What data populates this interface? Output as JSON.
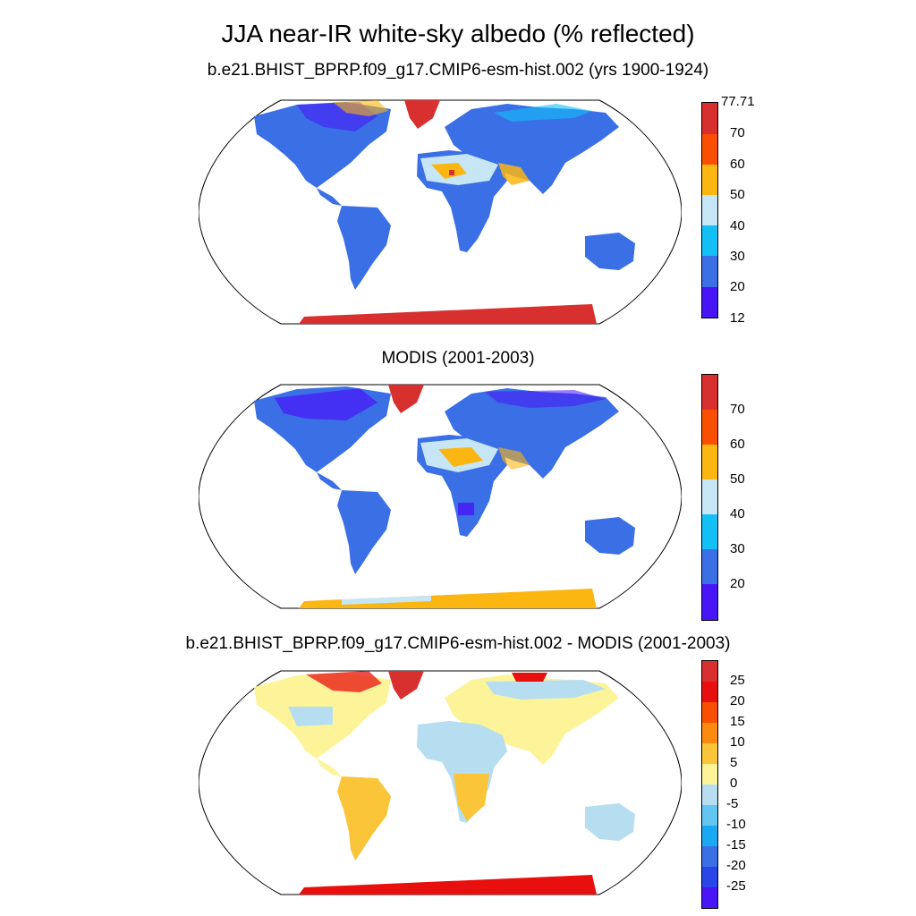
{
  "page": {
    "title": "JJA near-IR white-sky albedo (% reflected)"
  },
  "panels": [
    {
      "subtitle": "b.e21.BHIST_BPRP.f09_g17.CMIP6-esm-hist.002 (yrs 1900-1924)",
      "colorbar": {
        "labels": [
          "77.71",
          "70",
          "60",
          "50",
          "40",
          "30",
          "20",
          "12"
        ],
        "colors": [
          "#d7302f",
          "#fa4f00",
          "#fbb612",
          "#c6e6f6",
          "#12c0f6",
          "#3a6fe6",
          "#4815f6"
        ]
      }
    },
    {
      "subtitle": "MODIS (2001-2003)",
      "colorbar": {
        "labels": [
          "70",
          "60",
          "50",
          "40",
          "30",
          "20"
        ],
        "colors": [
          "#d7302f",
          "#fa4f00",
          "#fbb612",
          "#c6e6f6",
          "#12c0f6",
          "#3a6fe6",
          "#4815f6"
        ]
      }
    },
    {
      "subtitle": "b.e21.BHIST_BPRP.f09_g17.CMIP6-esm-hist.002 - MODIS (2001-2003)",
      "colorbar": {
        "labels": [
          "25",
          "20",
          "15",
          "10",
          "5",
          "0",
          "-5",
          "-10",
          "-15",
          "-20",
          "-25"
        ],
        "colors": [
          "#d7302f",
          "#e8100e",
          "#fa4f00",
          "#fb8a10",
          "#fbc53a",
          "#fdf49a",
          "#b6def0",
          "#62c6f0",
          "#1ba8f2",
          "#3a6fe6",
          "#2946e6",
          "#4815f6"
        ]
      }
    }
  ]
}
